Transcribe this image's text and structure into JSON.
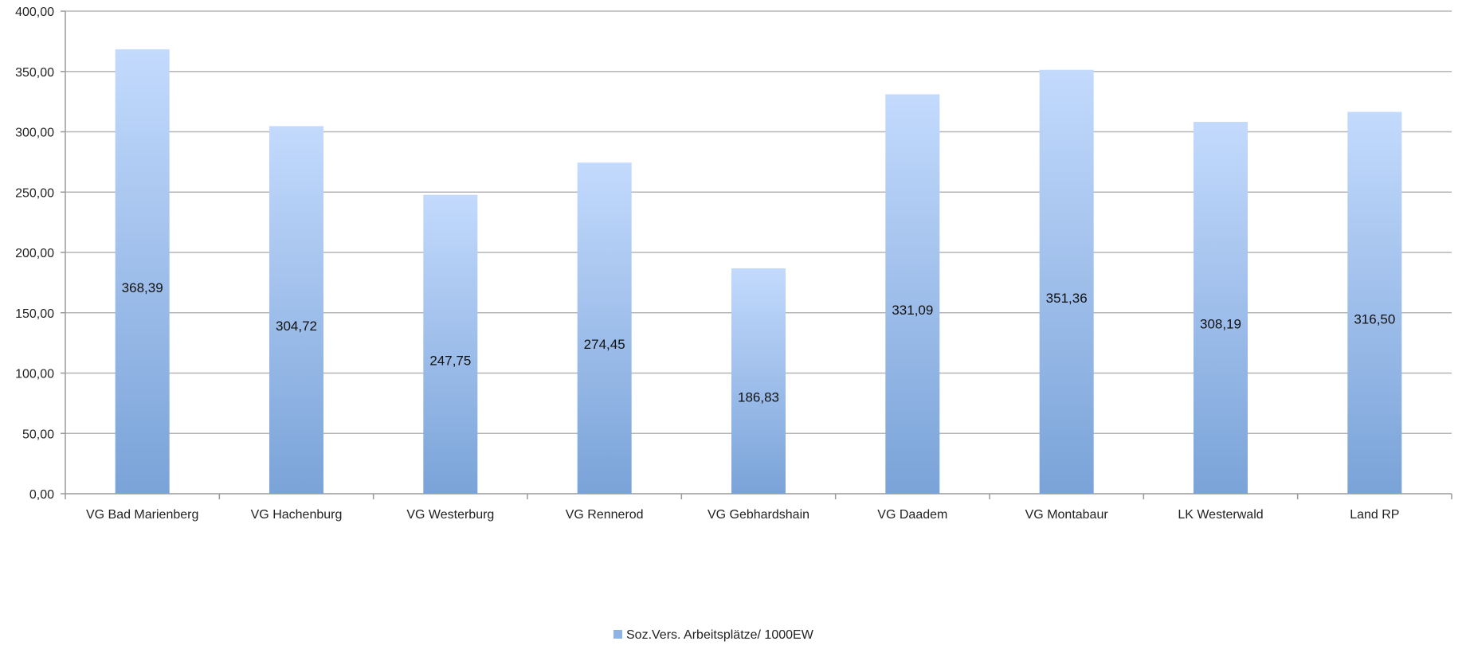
{
  "chart_data": {
    "type": "bar",
    "title": "",
    "xlabel": "",
    "ylabel": "",
    "categories": [
      "VG Bad Marienberg",
      "VG Hachenburg",
      "VG Westerburg",
      "VG Rennerod",
      "VG Gebhardshain",
      "VG Daadem",
      "VG Montabaur",
      "LK Westerwald",
      "Land RP"
    ],
    "series": [
      {
        "name": "Soz.Vers. Arbeitsplätze/ 1000EW",
        "values": [
          368.39,
          304.72,
          247.75,
          274.45,
          186.83,
          331.09,
          351.36,
          308.19,
          316.5
        ],
        "data_labels": [
          "368,39",
          "304,72",
          "247,75",
          "274,45",
          "186,83",
          "331,09",
          "351,36",
          "308,19",
          "316,50"
        ],
        "color_top": "#c3dafd",
        "color_bottom": "#7aa3d8"
      }
    ],
    "ylim": [
      0,
      400
    ],
    "y_ticks": [
      0,
      50,
      100,
      150,
      200,
      250,
      300,
      350,
      400
    ],
    "y_tick_labels": [
      "0,00",
      "50,00",
      "100,00",
      "150,00",
      "200,00",
      "250,00",
      "300,00",
      "350,00",
      "400,00"
    ],
    "grid": true,
    "legend_position": "bottom",
    "colors": {
      "grid": "#b5b5b5",
      "axis": "#9a9a9a",
      "legend_swatch": "#8fb3e3"
    }
  }
}
